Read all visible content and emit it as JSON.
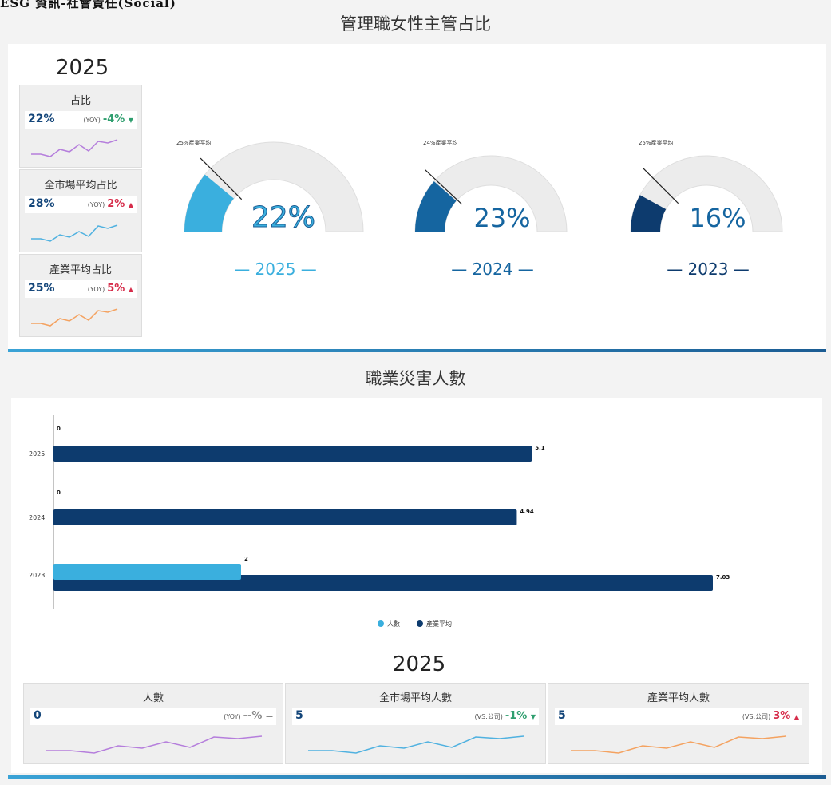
{
  "page": {
    "title": "ESG 資訊-社會責任(Social)"
  },
  "colors": {
    "teal": "#3aafde",
    "blue_mid": "#1565a0",
    "navy": "#0d3b6e",
    "gauge_bg": "#ececec",
    "purple": "#b57edc",
    "light_blue": "#4fb1e0",
    "orange": "#f4a260",
    "up_red": "#d62c4a",
    "down_green": "#2e9e6e"
  },
  "section1": {
    "title": "管理職女性主管占比",
    "year": "2025",
    "kpis": [
      {
        "label": "占比",
        "value": "22%",
        "yoy_tag": "(YOY)",
        "yoy": "-4%",
        "arrow": "▼",
        "trend": "down"
      },
      {
        "label": "全市場平均占比",
        "value": "28%",
        "yoy_tag": "(YOY)",
        "yoy": "2%",
        "arrow": "▲",
        "trend": "up"
      },
      {
        "label": "產業平均占比",
        "value": "25%",
        "yoy_tag": "(YOY)",
        "yoy": "5%",
        "arrow": "▲",
        "trend": "up"
      }
    ],
    "gauges": [
      {
        "year_label": "— 2025 —",
        "value_label": "22%",
        "avg_label": "25%產業平均",
        "value": 22,
        "avg": 25,
        "color": "#3aafde"
      },
      {
        "year_label": "— 2024 —",
        "value_label": "23%",
        "avg_label": "24%產業平均",
        "value": 23,
        "avg": 24,
        "color": "#1565a0"
      },
      {
        "year_label": "— 2023 —",
        "value_label": "16%",
        "avg_label": "25%產業平均",
        "value": 16,
        "avg": 25,
        "color": "#0d3b6e"
      }
    ]
  },
  "section2": {
    "title": "職業災害人數",
    "year": "2025",
    "kpis": [
      {
        "label": "人數",
        "value": "0",
        "yoy_tag": "(YOY)",
        "yoy": "--%",
        "arrow": "—",
        "trend": "flat"
      },
      {
        "label": "全市場平均人數",
        "value": "5",
        "yoy_tag": "(VS.公司)",
        "yoy": "-1%",
        "arrow": "▼",
        "trend": "down"
      },
      {
        "label": "產業平均人數",
        "value": "5",
        "yoy_tag": "(VS.公司)",
        "yoy": "3%",
        "arrow": "▲",
        "trend": "up"
      }
    ]
  },
  "chart_data": [
    {
      "type": "gauge",
      "title": "管理職女性主管占比",
      "categories": [
        "2025",
        "2024",
        "2023"
      ],
      "series": [
        {
          "name": "占比",
          "values": [
            22,
            23,
            16
          ]
        },
        {
          "name": "產業平均",
          "values": [
            25,
            24,
            25
          ]
        }
      ],
      "ylim": [
        0,
        100
      ]
    },
    {
      "type": "bar",
      "orientation": "horizontal",
      "title": "職業災害人數",
      "categories": [
        "2025",
        "2024",
        "2023"
      ],
      "series": [
        {
          "name": "人數",
          "values": [
            0,
            0,
            2
          ],
          "labels": [
            "0",
            "0",
            "2"
          ]
        },
        {
          "name": "產業平均",
          "values": [
            5.1,
            4.94,
            7.03
          ],
          "labels": [
            "5.1",
            "4.94",
            "7.03"
          ]
        }
      ],
      "xlim": [
        0,
        7.6
      ],
      "legend": "bottom"
    }
  ]
}
